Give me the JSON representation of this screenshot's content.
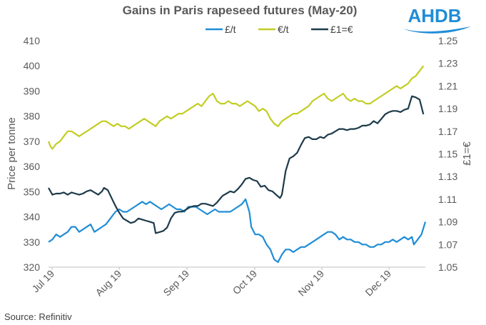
{
  "logo": {
    "text": "AHDB",
    "color": "#1f8dd6"
  },
  "source": "Source: Refinitiv",
  "colors": {
    "gbp": "#1f8dd6",
    "eur": "#c2cd23",
    "fx": "#1d3a4a",
    "text": "#595959"
  },
  "chart_data": {
    "type": "line",
    "title": "Gains in Paris rapeseed futures (May-20)",
    "ylabel": "Price per tonne",
    "y2label": "£1=€",
    "ylim": [
      320,
      410
    ],
    "y2lim": [
      1.05,
      1.25
    ],
    "yticks": [
      320,
      330,
      340,
      350,
      360,
      370,
      380,
      390,
      400,
      410
    ],
    "y2ticks": [
      "1.05",
      "1.07",
      "1.09",
      "1.11",
      "1.13",
      "1.15",
      "1.17",
      "1.19",
      "1.21",
      "1.23",
      "1.25"
    ],
    "x_ticks": [
      "Jul 19",
      "Aug 19",
      "Sep 19",
      "Oct 19",
      "Nov 19",
      "Dec 19"
    ],
    "legend_position": "top",
    "grid": false,
    "series": [
      {
        "name": "£/t",
        "axis": "left",
        "color": "#1f8dd6",
        "points": [
          [
            0,
            330
          ],
          [
            2,
            331
          ],
          [
            4,
            333
          ],
          [
            6,
            332
          ],
          [
            8,
            333
          ],
          [
            10,
            334
          ],
          [
            12,
            336
          ],
          [
            14,
            336
          ],
          [
            16,
            334
          ],
          [
            18,
            335
          ],
          [
            20,
            336
          ],
          [
            22,
            337
          ],
          [
            24,
            334
          ],
          [
            26,
            335
          ],
          [
            28,
            336
          ],
          [
            30,
            337
          ],
          [
            31,
            338
          ],
          [
            33,
            340
          ],
          [
            35,
            342
          ],
          [
            37,
            343
          ],
          [
            39,
            342
          ],
          [
            41,
            342
          ],
          [
            43,
            343
          ],
          [
            45,
            344
          ],
          [
            47,
            345
          ],
          [
            49,
            346
          ],
          [
            51,
            345
          ],
          [
            53,
            346
          ],
          [
            55,
            345
          ],
          [
            57,
            344
          ],
          [
            59,
            343
          ],
          [
            61,
            344
          ],
          [
            63,
            345
          ],
          [
            65,
            344
          ],
          [
            67,
            343
          ],
          [
            69,
            343
          ],
          [
            71,
            342
          ],
          [
            73,
            344
          ],
          [
            75,
            344
          ],
          [
            77,
            344
          ],
          [
            79,
            343
          ],
          [
            81,
            342
          ],
          [
            83,
            341
          ],
          [
            85,
            342
          ],
          [
            87,
            343
          ],
          [
            89,
            342
          ],
          [
            91,
            342
          ],
          [
            93,
            342
          ],
          [
            95,
            342
          ],
          [
            97,
            343
          ],
          [
            99,
            344
          ],
          [
            101,
            345
          ],
          [
            103,
            347
          ],
          [
            105,
            342
          ],
          [
            106,
            336
          ],
          [
            108,
            333
          ],
          [
            110,
            333
          ],
          [
            112,
            332
          ],
          [
            114,
            329
          ],
          [
            116,
            327
          ],
          [
            118,
            323
          ],
          [
            120,
            322
          ],
          [
            122,
            325
          ],
          [
            124,
            327
          ],
          [
            126,
            327
          ],
          [
            128,
            326
          ],
          [
            130,
            327
          ],
          [
            132,
            328
          ],
          [
            134,
            328
          ],
          [
            136,
            329
          ],
          [
            138,
            330
          ],
          [
            140,
            331
          ],
          [
            142,
            332
          ],
          [
            144,
            333
          ],
          [
            146,
            334
          ],
          [
            148,
            334
          ],
          [
            150,
            333
          ],
          [
            152,
            331
          ],
          [
            154,
            332
          ],
          [
            156,
            331
          ],
          [
            158,
            331
          ],
          [
            160,
            330
          ],
          [
            162,
            330
          ],
          [
            164,
            329
          ],
          [
            166,
            329
          ],
          [
            168,
            328
          ],
          [
            170,
            328
          ],
          [
            172,
            329
          ],
          [
            174,
            329
          ],
          [
            176,
            330
          ],
          [
            178,
            330
          ],
          [
            180,
            331
          ],
          [
            182,
            330
          ],
          [
            184,
            331
          ],
          [
            186,
            332
          ],
          [
            188,
            331
          ],
          [
            190,
            332
          ],
          [
            191,
            329
          ],
          [
            193,
            331
          ],
          [
            195,
            333
          ],
          [
            197,
            338
          ]
        ]
      },
      {
        "name": "€/t",
        "axis": "left",
        "color": "#c2cd23",
        "points": [
          [
            0,
            370
          ],
          [
            1,
            368
          ],
          [
            2,
            367
          ],
          [
            4,
            369
          ],
          [
            6,
            370
          ],
          [
            8,
            372
          ],
          [
            10,
            374
          ],
          [
            12,
            374
          ],
          [
            14,
            373
          ],
          [
            16,
            372
          ],
          [
            18,
            373
          ],
          [
            20,
            374
          ],
          [
            22,
            375
          ],
          [
            24,
            376
          ],
          [
            26,
            377
          ],
          [
            28,
            378
          ],
          [
            30,
            378
          ],
          [
            32,
            377
          ],
          [
            34,
            376
          ],
          [
            36,
            377
          ],
          [
            38,
            376
          ],
          [
            40,
            376
          ],
          [
            42,
            375
          ],
          [
            44,
            376
          ],
          [
            46,
            377
          ],
          [
            48,
            378
          ],
          [
            50,
            379
          ],
          [
            52,
            378
          ],
          [
            54,
            377
          ],
          [
            56,
            376
          ],
          [
            58,
            378
          ],
          [
            60,
            379
          ],
          [
            62,
            380
          ],
          [
            64,
            379
          ],
          [
            66,
            380
          ],
          [
            68,
            381
          ],
          [
            70,
            381
          ],
          [
            72,
            382
          ],
          [
            74,
            383
          ],
          [
            76,
            384
          ],
          [
            78,
            385
          ],
          [
            80,
            384
          ],
          [
            82,
            386
          ],
          [
            84,
            388
          ],
          [
            86,
            389
          ],
          [
            88,
            386
          ],
          [
            90,
            385
          ],
          [
            92,
            385
          ],
          [
            94,
            386
          ],
          [
            96,
            385
          ],
          [
            98,
            385
          ],
          [
            100,
            384
          ],
          [
            102,
            385
          ],
          [
            104,
            386
          ],
          [
            106,
            385
          ],
          [
            108,
            384
          ],
          [
            110,
            382
          ],
          [
            112,
            383
          ],
          [
            114,
            382
          ],
          [
            116,
            379
          ],
          [
            118,
            377
          ],
          [
            120,
            376
          ],
          [
            122,
            378
          ],
          [
            124,
            379
          ],
          [
            126,
            380
          ],
          [
            128,
            381
          ],
          [
            130,
            381
          ],
          [
            132,
            382
          ],
          [
            134,
            383
          ],
          [
            136,
            384
          ],
          [
            138,
            386
          ],
          [
            140,
            387
          ],
          [
            142,
            388
          ],
          [
            144,
            389
          ],
          [
            146,
            387
          ],
          [
            148,
            386
          ],
          [
            150,
            387
          ],
          [
            152,
            388
          ],
          [
            154,
            389
          ],
          [
            156,
            387
          ],
          [
            158,
            386
          ],
          [
            160,
            387
          ],
          [
            162,
            386
          ],
          [
            164,
            386
          ],
          [
            166,
            385
          ],
          [
            168,
            385
          ],
          [
            170,
            386
          ],
          [
            172,
            387
          ],
          [
            174,
            388
          ],
          [
            176,
            389
          ],
          [
            178,
            390
          ],
          [
            180,
            391
          ],
          [
            182,
            392
          ],
          [
            184,
            391
          ],
          [
            186,
            392
          ],
          [
            188,
            393
          ],
          [
            190,
            395
          ],
          [
            192,
            396
          ],
          [
            194,
            398
          ],
          [
            196,
            400
          ]
        ]
      },
      {
        "name": "£1=€",
        "axis": "right",
        "color": "#1d3a4a",
        "points": [
          [
            0,
            1.12
          ],
          [
            2,
            1.114
          ],
          [
            4,
            1.115
          ],
          [
            6,
            1.115
          ],
          [
            8,
            1.116
          ],
          [
            10,
            1.114
          ],
          [
            12,
            1.116
          ],
          [
            14,
            1.115
          ],
          [
            16,
            1.114
          ],
          [
            18,
            1.115
          ],
          [
            20,
            1.117
          ],
          [
            22,
            1.118
          ],
          [
            24,
            1.116
          ],
          [
            26,
            1.114
          ],
          [
            28,
            1.117
          ],
          [
            29,
            1.12
          ],
          [
            31,
            1.118
          ],
          [
            33,
            1.111
          ],
          [
            35,
            1.104
          ],
          [
            37,
            1.098
          ],
          [
            39,
            1.093
          ],
          [
            41,
            1.091
          ],
          [
            43,
            1.089
          ],
          [
            45,
            1.09
          ],
          [
            47,
            1.093
          ],
          [
            49,
            1.092
          ],
          [
            51,
            1.091
          ],
          [
            53,
            1.09
          ],
          [
            55,
            1.089
          ],
          [
            56,
            1.08
          ],
          [
            58,
            1.081
          ],
          [
            60,
            1.082
          ],
          [
            62,
            1.085
          ],
          [
            64,
            1.093
          ],
          [
            66,
            1.098
          ],
          [
            68,
            1.099
          ],
          [
            70,
            1.099
          ],
          [
            72,
            1.101
          ],
          [
            74,
            1.103
          ],
          [
            76,
            1.104
          ],
          [
            78,
            1.104
          ],
          [
            80,
            1.106
          ],
          [
            82,
            1.106
          ],
          [
            84,
            1.105
          ],
          [
            86,
            1.104
          ],
          [
            88,
            1.107
          ],
          [
            89,
            1.109
          ],
          [
            91,
            1.113
          ],
          [
            93,
            1.115
          ],
          [
            95,
            1.117
          ],
          [
            97,
            1.116
          ],
          [
            99,
            1.119
          ],
          [
            101,
            1.123
          ],
          [
            103,
            1.128
          ],
          [
            105,
            1.129
          ],
          [
            107,
            1.127
          ],
          [
            109,
            1.126
          ],
          [
            111,
            1.121
          ],
          [
            113,
            1.122
          ],
          [
            115,
            1.118
          ],
          [
            117,
            1.117
          ],
          [
            119,
            1.114
          ],
          [
            121,
            1.111
          ],
          [
            122,
            1.114
          ],
          [
            124,
            1.135
          ],
          [
            126,
            1.146
          ],
          [
            128,
            1.148
          ],
          [
            130,
            1.151
          ],
          [
            132,
            1.158
          ],
          [
            134,
            1.164
          ],
          [
            136,
            1.165
          ],
          [
            138,
            1.163
          ],
          [
            140,
            1.163
          ],
          [
            142,
            1.165
          ],
          [
            144,
            1.164
          ],
          [
            146,
            1.167
          ],
          [
            148,
            1.168
          ],
          [
            150,
            1.17
          ],
          [
            152,
            1.172
          ],
          [
            154,
            1.172
          ],
          [
            156,
            1.171
          ],
          [
            158,
            1.172
          ],
          [
            160,
            1.172
          ],
          [
            162,
            1.173
          ],
          [
            164,
            1.175
          ],
          [
            166,
            1.175
          ],
          [
            168,
            1.176
          ],
          [
            170,
            1.179
          ],
          [
            172,
            1.177
          ],
          [
            174,
            1.181
          ],
          [
            176,
            1.185
          ],
          [
            178,
            1.187
          ],
          [
            180,
            1.188
          ],
          [
            182,
            1.188
          ],
          [
            184,
            1.187
          ],
          [
            186,
            1.189
          ],
          [
            188,
            1.19
          ],
          [
            190,
            1.201
          ],
          [
            192,
            1.2
          ],
          [
            194,
            1.198
          ],
          [
            196,
            1.185
          ]
        ]
      }
    ]
  }
}
